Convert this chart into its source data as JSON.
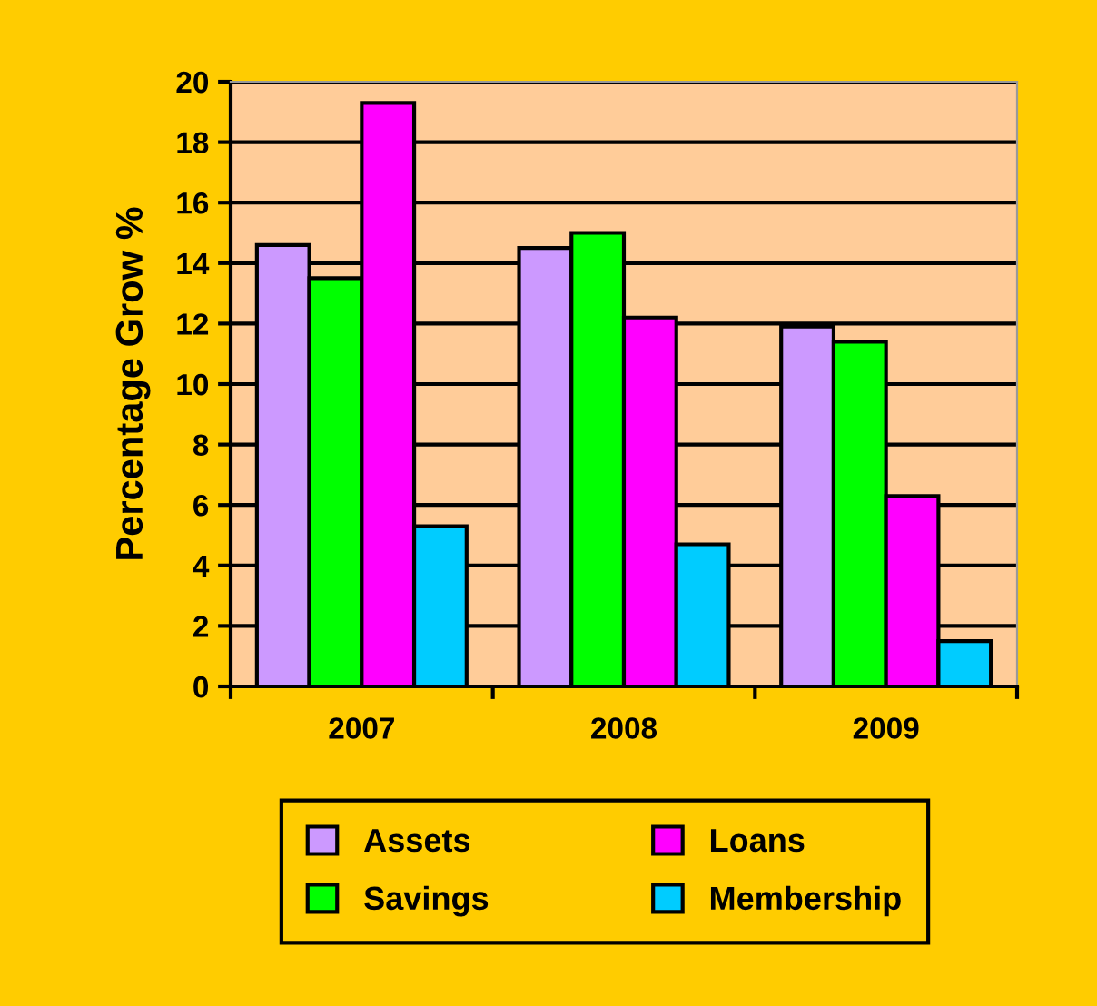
{
  "chart_data": {
    "type": "bar",
    "ylabel": "Percentage Grow %",
    "categories": [
      "2007",
      "2008",
      "2009"
    ],
    "series": [
      {
        "name": "Assets",
        "color": "#cc99ff",
        "values": [
          14.6,
          14.5,
          11.9
        ]
      },
      {
        "name": "Savings",
        "color": "#00ff00",
        "values": [
          13.5,
          15.0,
          11.4
        ]
      },
      {
        "name": "Loans",
        "color": "#ff00ff",
        "values": [
          19.3,
          12.2,
          6.3
        ]
      },
      {
        "name": "Membership",
        "color": "#00ccff",
        "values": [
          5.3,
          4.7,
          1.5
        ]
      }
    ],
    "ylim": [
      0,
      20
    ],
    "yticks": [
      0,
      2,
      4,
      6,
      8,
      10,
      12,
      14,
      16,
      18,
      20
    ],
    "grid": "y",
    "legend": "bottom"
  }
}
